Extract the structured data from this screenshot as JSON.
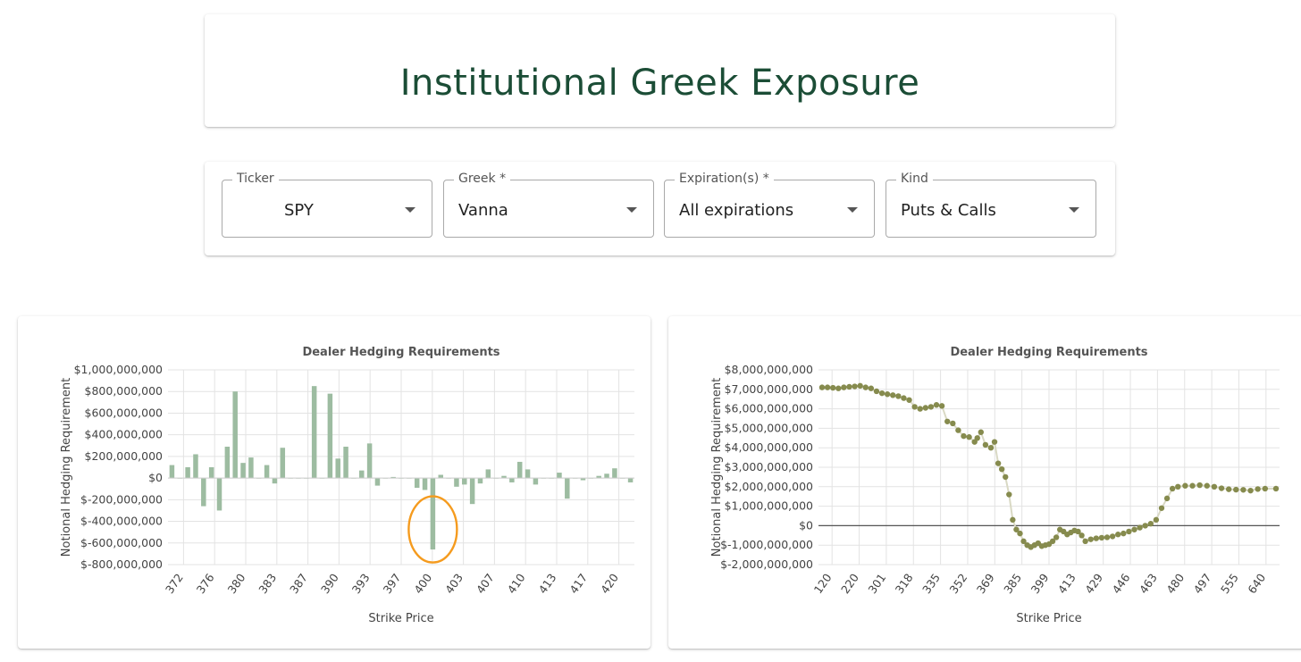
{
  "header": {
    "title": "Institutional Greek Exposure"
  },
  "controls": {
    "ticker": {
      "label": "Ticker",
      "value": "SPY"
    },
    "greek": {
      "label": "Greek *",
      "value": "Vanna"
    },
    "expiration": {
      "label": "Expiration(s) *",
      "value": "All expirations"
    },
    "kind": {
      "label": "Kind",
      "value": "Puts & Calls"
    }
  },
  "colors": {
    "title": "#1b4d36",
    "bar": "#9dbca1",
    "scatter": "#868b4e",
    "highlight_circle": "#f59b1e"
  },
  "chart_data": [
    {
      "type": "bar",
      "title": "Dealer Hedging Requirements",
      "xlabel": "Strike Price",
      "ylabel": "Notional Hedging Requirement",
      "ylim": [
        -800000000,
        1000000000
      ],
      "yticks": [
        "$1,000,000,000",
        "$800,000,000",
        "$600,000,000",
        "$400,000,000",
        "$200,000,000",
        "$0",
        "$-200,000,000",
        "$-400,000,000",
        "$-600,000,000",
        "$-800,000,000"
      ],
      "xtick_labels": [
        "372",
        "376",
        "380",
        "383",
        "387",
        "390",
        "393",
        "397",
        "400",
        "403",
        "407",
        "410",
        "413",
        "417",
        "420"
      ],
      "grid": true,
      "annotation": "orange circle around bar near strike 399",
      "values": [
        120000000,
        0,
        100000000,
        220000000,
        -260000000,
        100000000,
        -300000000,
        290000000,
        800000000,
        140000000,
        190000000,
        0,
        120000000,
        -50000000,
        280000000,
        0,
        0,
        0,
        850000000,
        0,
        780000000,
        180000000,
        290000000,
        0,
        70000000,
        320000000,
        -70000000,
        0,
        10000000,
        0,
        0,
        -90000000,
        -110000000,
        -660000000,
        30000000,
        0,
        -80000000,
        -60000000,
        -240000000,
        -50000000,
        80000000,
        0,
        20000000,
        -40000000,
        150000000,
        80000000,
        -60000000,
        0,
        0,
        50000000,
        -190000000,
        0,
        -20000000,
        0,
        20000000,
        40000000,
        90000000,
        0,
        -40000000
      ]
    },
    {
      "type": "scatter",
      "title": "Dealer Hedging Requirements",
      "xlabel": "Strike Price",
      "ylabel": "Notional Hedging Requirement",
      "ylim": [
        -2000000000,
        8000000000
      ],
      "yticks": [
        "$8,000,000,000",
        "$7,000,000,000",
        "$6,000,000,000",
        "$5,000,000,000",
        "$4,000,000,000",
        "$3,000,000,000",
        "$2,000,000,000",
        "$1,000,000,000",
        "$0",
        "$-1,000,000,000",
        "$-2,000,000,000"
      ],
      "xtick_labels": [
        "120",
        "220",
        "301",
        "318",
        "335",
        "352",
        "369",
        "385",
        "399",
        "413",
        "429",
        "446",
        "463",
        "480",
        "497",
        "555",
        "640"
      ],
      "grid": true,
      "y_fraction_points": [
        [
          0,
          7100000000
        ],
        [
          0.012,
          7100000000
        ],
        [
          0.024,
          7080000000
        ],
        [
          0.036,
          7050000000
        ],
        [
          0.048,
          7100000000
        ],
        [
          0.06,
          7130000000
        ],
        [
          0.072,
          7150000000
        ],
        [
          0.084,
          7180000000
        ],
        [
          0.096,
          7100000000
        ],
        [
          0.108,
          7050000000
        ],
        [
          0.12,
          6900000000
        ],
        [
          0.132,
          6800000000
        ],
        [
          0.144,
          6750000000
        ],
        [
          0.156,
          6700000000
        ],
        [
          0.168,
          6650000000
        ],
        [
          0.18,
          6550000000
        ],
        [
          0.192,
          6450000000
        ],
        [
          0.204,
          6100000000
        ],
        [
          0.216,
          6000000000
        ],
        [
          0.228,
          6050000000
        ],
        [
          0.24,
          6100000000
        ],
        [
          0.252,
          6200000000
        ],
        [
          0.264,
          6150000000
        ],
        [
          0.276,
          5350000000
        ],
        [
          0.288,
          5250000000
        ],
        [
          0.3,
          4900000000
        ],
        [
          0.312,
          4600000000
        ],
        [
          0.324,
          4550000000
        ],
        [
          0.336,
          4300000000
        ],
        [
          0.342,
          4500000000
        ],
        [
          0.35,
          4800000000
        ],
        [
          0.36,
          4150000000
        ],
        [
          0.372,
          4000000000
        ],
        [
          0.38,
          4300000000
        ],
        [
          0.388,
          3200000000
        ],
        [
          0.396,
          2900000000
        ],
        [
          0.404,
          2500000000
        ],
        [
          0.412,
          1600000000
        ],
        [
          0.42,
          300000000
        ],
        [
          0.428,
          -200000000
        ],
        [
          0.436,
          -400000000
        ],
        [
          0.444,
          -800000000
        ],
        [
          0.452,
          -1000000000
        ],
        [
          0.46,
          -1100000000
        ],
        [
          0.468,
          -1000000000
        ],
        [
          0.476,
          -900000000
        ],
        [
          0.484,
          -1050000000
        ],
        [
          0.492,
          -1000000000
        ],
        [
          0.5,
          -950000000
        ],
        [
          0.508,
          -800000000
        ],
        [
          0.516,
          -600000000
        ],
        [
          0.524,
          -200000000
        ],
        [
          0.532,
          -300000000
        ],
        [
          0.54,
          -450000000
        ],
        [
          0.548,
          -350000000
        ],
        [
          0.556,
          -250000000
        ],
        [
          0.564,
          -300000000
        ],
        [
          0.572,
          -500000000
        ],
        [
          0.58,
          -800000000
        ],
        [
          0.592,
          -700000000
        ],
        [
          0.604,
          -650000000
        ],
        [
          0.616,
          -620000000
        ],
        [
          0.628,
          -600000000
        ],
        [
          0.64,
          -550000000
        ],
        [
          0.652,
          -450000000
        ],
        [
          0.664,
          -400000000
        ],
        [
          0.676,
          -300000000
        ],
        [
          0.688,
          -200000000
        ],
        [
          0.7,
          -100000000
        ],
        [
          0.712,
          0
        ],
        [
          0.724,
          100000000
        ],
        [
          0.736,
          300000000
        ],
        [
          0.748,
          900000000
        ],
        [
          0.76,
          1400000000
        ],
        [
          0.772,
          1900000000
        ],
        [
          0.784,
          2000000000
        ],
        [
          0.8,
          2050000000
        ],
        [
          0.816,
          2050000000
        ],
        [
          0.832,
          2080000000
        ],
        [
          0.848,
          2050000000
        ],
        [
          0.864,
          2000000000
        ],
        [
          0.88,
          1920000000
        ],
        [
          0.896,
          1870000000
        ],
        [
          0.912,
          1850000000
        ],
        [
          0.928,
          1840000000
        ],
        [
          0.944,
          1800000000
        ],
        [
          0.96,
          1880000000
        ],
        [
          0.976,
          1900000000
        ],
        [
          1,
          1900000000
        ]
      ]
    }
  ]
}
